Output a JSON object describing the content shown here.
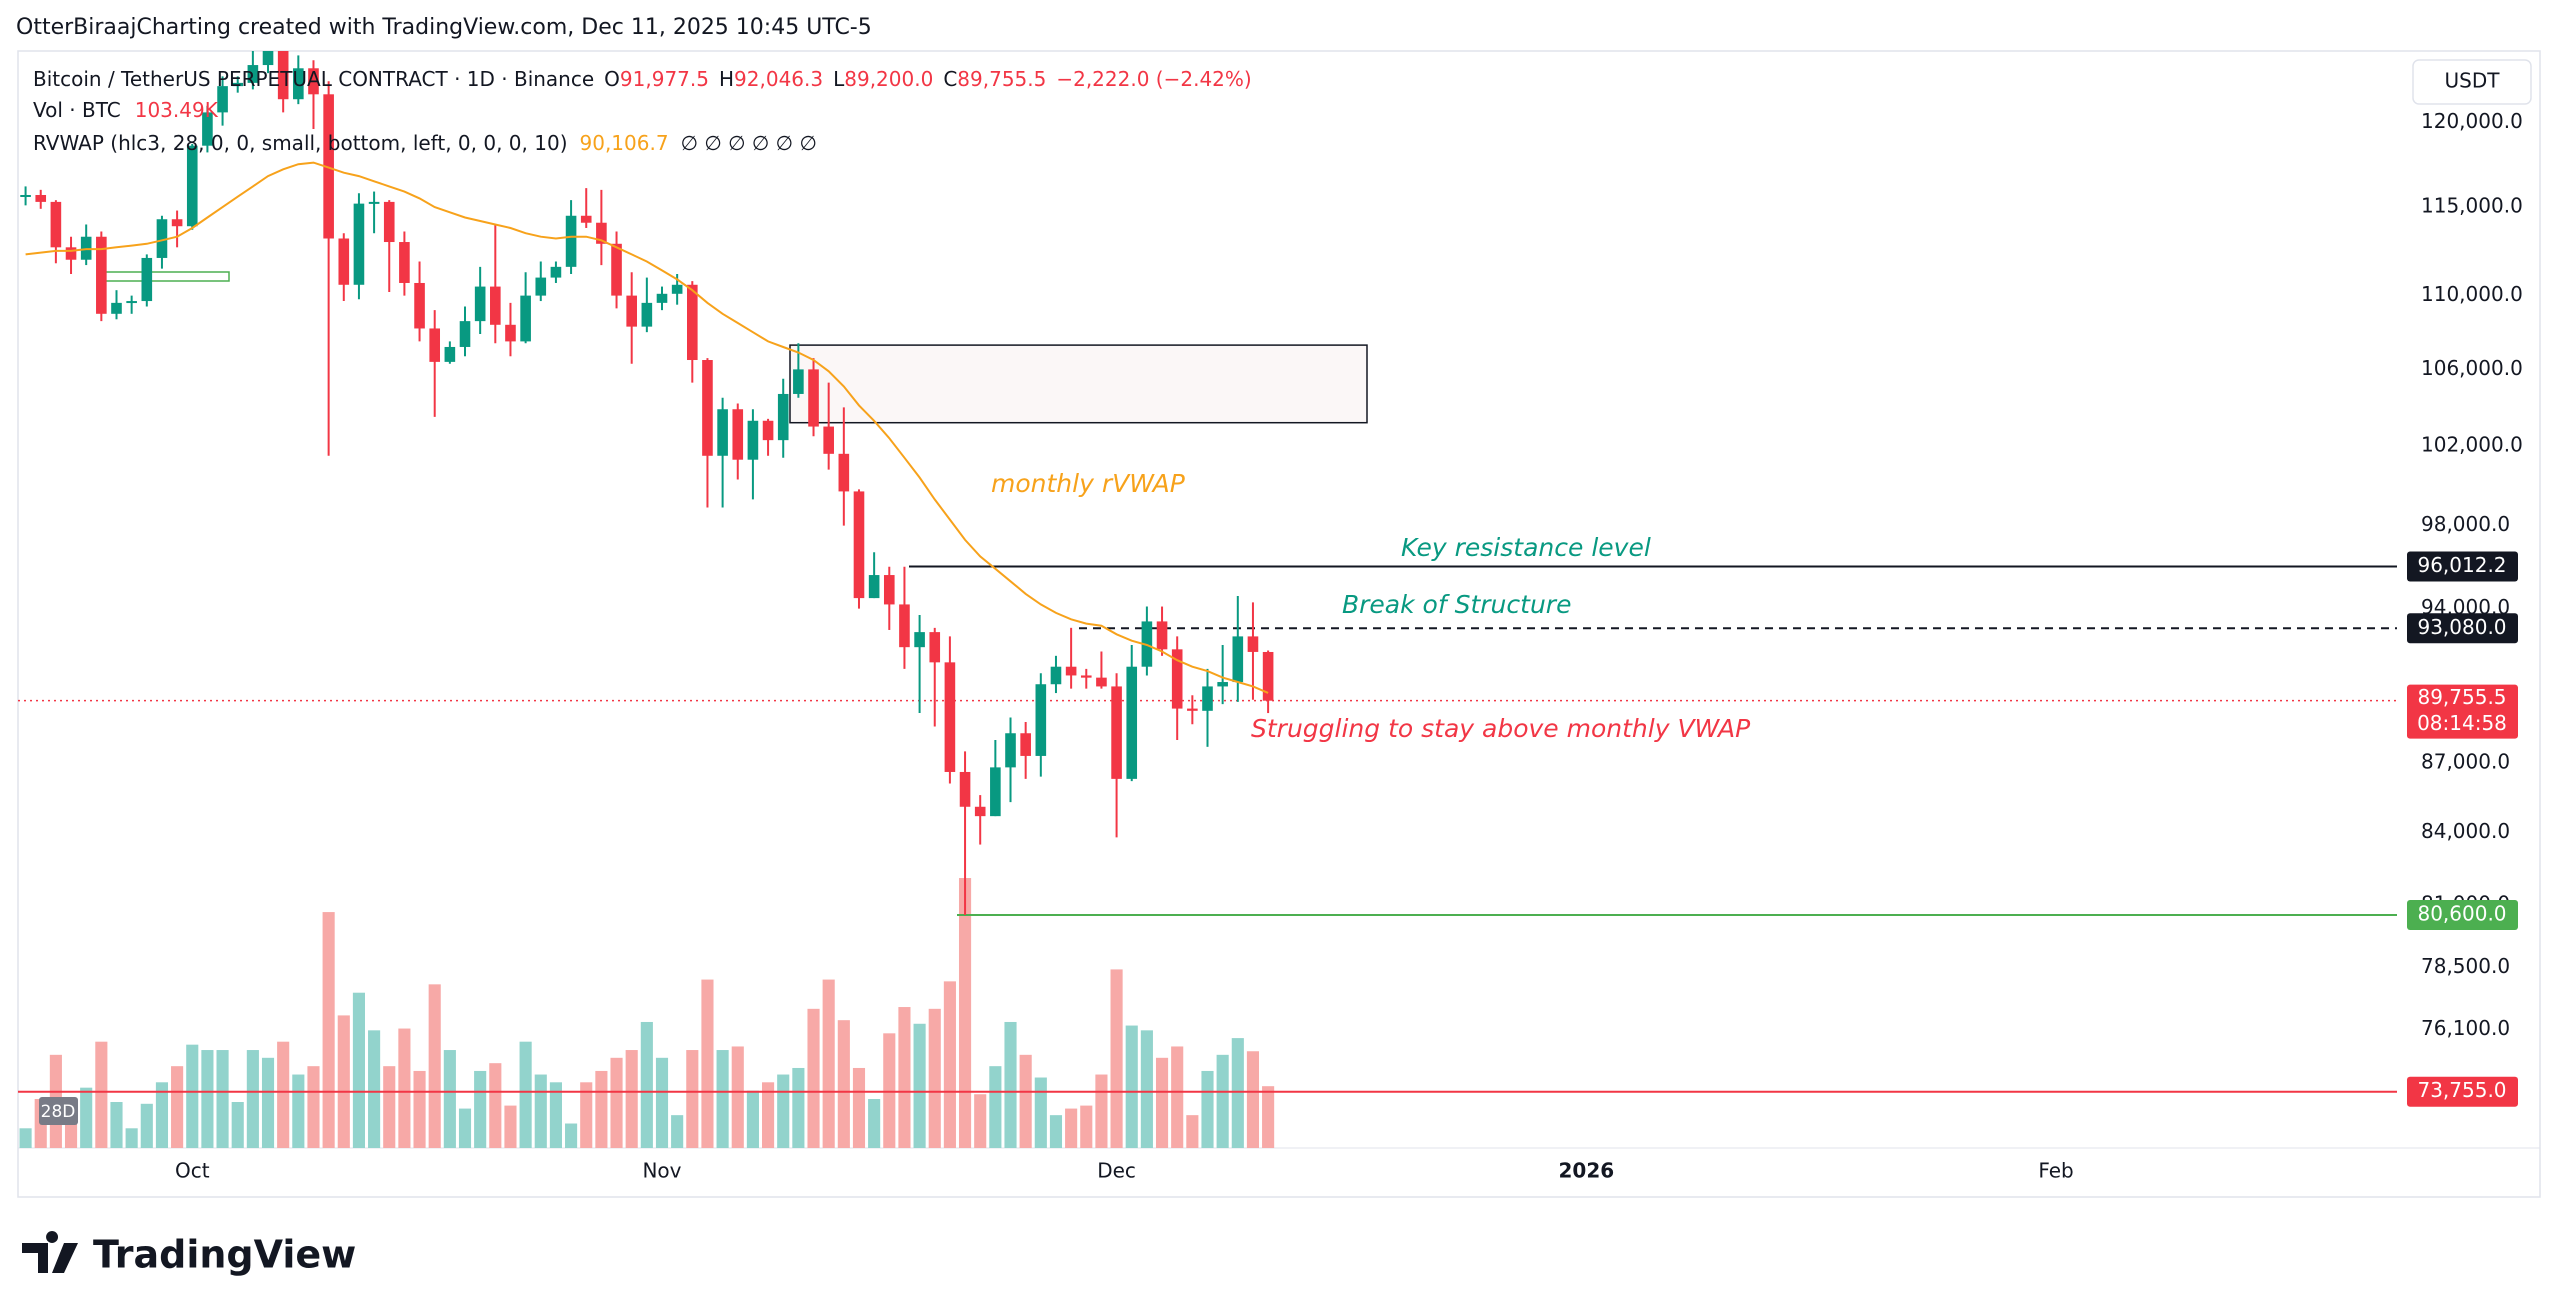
{
  "header": {
    "attribution": "OtterBiraajCharting created with TradingView.com, Dec 11, 2025 10:45 UTC-5"
  },
  "chart_data": {
    "type": "candlestick",
    "symbol": "Bitcoin / TetherUS PERPETUAL CONTRACT · 1D · Binance",
    "ohlc_legend": [
      {
        "key": "O",
        "value": "91,977.5"
      },
      {
        "key": "H",
        "value": "92,046.3"
      },
      {
        "key": "L",
        "value": "89,200.0"
      },
      {
        "key": "C",
        "value": "89,755.5"
      }
    ],
    "change": "−2,222.0 (−2.42%)",
    "volume_legend": {
      "name": "Vol · BTC",
      "value": "103.49K"
    },
    "indicator_legend": {
      "name": "RVWAP (hlc3, 28, 0, 0, small, bottom, left, 0, 0, 0, 10)",
      "value": "90,106.7",
      "extras": "∅ ∅ ∅ ∅ ∅ ∅"
    },
    "currency": "USDT",
    "log_scale": true,
    "grid": false,
    "ylim": [
      71700,
      124500
    ],
    "yticks": [
      {
        "value": 120000,
        "label": "120,000.0"
      },
      {
        "value": 115000,
        "label": "115,000.0"
      },
      {
        "value": 110000,
        "label": "110,000.0"
      },
      {
        "value": 106000,
        "label": "106,000.0"
      },
      {
        "value": 102000,
        "label": "102,000.0"
      },
      {
        "value": 98000,
        "label": "98,000.0"
      },
      {
        "value": 94000,
        "label": "94,000.0"
      },
      {
        "value": 87000,
        "label": "87,000.0"
      },
      {
        "value": 84000,
        "label": "84,000.0"
      },
      {
        "value": 81000,
        "label": "81,000.0"
      },
      {
        "value": 78500,
        "label": "78,500.0"
      },
      {
        "value": 76100,
        "label": "76,100.0"
      }
    ],
    "xlim": [
      -0.5,
      156.5
    ],
    "xticks": [
      {
        "value": 11,
        "label": "Oct"
      },
      {
        "value": 42,
        "label": "Nov"
      },
      {
        "value": 72,
        "label": "Dec"
      },
      {
        "value": 103,
        "label": "2026",
        "bold": true
      },
      {
        "value": 134,
        "label": "Feb"
      }
    ],
    "up_color": "#089981",
    "down_color": "#f23645",
    "open": [
      115600,
      115700,
      115300,
      112700,
      112000,
      113300,
      109000,
      109600,
      109700,
      112100,
      114300,
      113900,
      118600,
      120600,
      122200,
      122400,
      123500,
      124700,
      121400,
      123300,
      121700,
      113200,
      110600,
      115200,
      115300,
      113000,
      110700,
      108200,
      106400,
      107200,
      108600,
      110500,
      108400,
      107500,
      110000,
      111000,
      111600,
      114500,
      114100,
      112900,
      110000,
      108300,
      109600,
      110100,
      110600,
      106500,
      101500,
      103900,
      101300,
      103300,
      102300,
      104700,
      106000,
      103000,
      101600,
      99700,
      94500,
      95600,
      94200,
      92200,
      92900,
      91500,
      86600,
      85100,
      84700,
      86800,
      88300,
      87300,
      90500,
      91300,
      90900,
      90800,
      90400,
      86300,
      91300,
      93400,
      92100,
      89400,
      89300,
      90400,
      90600,
      92700,
      91977.5
    ],
    "high": [
      116200,
      116000,
      115400,
      113300,
      114000,
      113600,
      110300,
      110000,
      112300,
      114500,
      114800,
      118700,
      121000,
      122800,
      122800,
      125200,
      126200,
      125200,
      124100,
      123800,
      122500,
      113500,
      115800,
      115900,
      115400,
      113600,
      111900,
      109200,
      107500,
      109400,
      111600,
      114000,
      109600,
      111300,
      111900,
      111900,
      115400,
      116100,
      116000,
      113600,
      111300,
      111000,
      110500,
      111200,
      110800,
      106600,
      104500,
      104200,
      103900,
      103400,
      105500,
      107400,
      106600,
      105300,
      104000,
      99800,
      96700,
      96000,
      96000,
      93700,
      93100,
      92700,
      87500,
      85600,
      88000,
      89000,
      88800,
      91000,
      91800,
      93100,
      91200,
      92000,
      91000,
      92300,
      94100,
      94100,
      92700,
      90000,
      91200,
      92300,
      94600,
      94300,
      92046.3
    ],
    "low": [
      115100,
      114900,
      111800,
      111200,
      111700,
      108600,
      108700,
      109000,
      109400,
      111500,
      112700,
      113700,
      118200,
      119800,
      121800,
      122000,
      123000,
      120600,
      121100,
      119600,
      101500,
      109700,
      109800,
      113500,
      110200,
      110000,
      107500,
      103500,
      106300,
      106700,
      107900,
      107400,
      106700,
      107400,
      109700,
      110700,
      111200,
      113800,
      111700,
      109300,
      106300,
      108000,
      109200,
      109500,
      105300,
      98900,
      98900,
      100300,
      99300,
      101500,
      101400,
      104500,
      102500,
      100800,
      98000,
      94000,
      94500,
      93000,
      91200,
      89200,
      88600,
      86100,
      80600,
      83500,
      84700,
      85300,
      86300,
      86400,
      90100,
      90300,
      90300,
      90300,
      83800,
      86200,
      90900,
      91800,
      88000,
      88700,
      87700,
      89600,
      89700,
      89800,
      89200
    ],
    "close": [
      115700,
      115300,
      112700,
      112000,
      113300,
      109000,
      109600,
      109700,
      112100,
      114300,
      113900,
      118600,
      120600,
      122200,
      122400,
      123500,
      124700,
      121400,
      123300,
      121700,
      113200,
      110600,
      115200,
      115300,
      113000,
      110700,
      108200,
      106400,
      107200,
      108600,
      110500,
      108400,
      107500,
      110000,
      111000,
      111600,
      114500,
      114100,
      112900,
      110000,
      108300,
      109600,
      110100,
      110600,
      106500,
      101500,
      103900,
      101300,
      103300,
      102300,
      104700,
      106000,
      103000,
      101600,
      99700,
      94500,
      95600,
      94200,
      92200,
      92900,
      91500,
      86600,
      85100,
      84700,
      86800,
      88300,
      87300,
      90500,
      91300,
      90900,
      90800,
      90400,
      86300,
      91300,
      93400,
      92100,
      89400,
      89300,
      90400,
      90600,
      92700,
      91980,
      89755.5
    ],
    "volume": [
      33,
      82,
      156,
      82,
      101,
      178,
      77,
      33,
      74,
      110,
      137,
      173,
      164,
      164,
      77,
      164,
      151,
      178,
      123,
      137,
      395,
      222,
      260,
      197,
      137,
      200,
      129,
      274,
      164,
      66,
      129,
      142,
      71,
      178,
      123,
      110,
      41,
      110,
      129,
      151,
      164,
      211,
      151,
      55,
      164,
      282,
      164,
      170,
      96,
      110,
      123,
      134,
      233,
      282,
      214,
      134,
      82,
      192,
      236,
      208,
      233,
      279,
      452,
      90,
      137,
      211,
      156,
      118,
      55,
      66,
      71,
      123,
      299,
      205,
      197,
      151,
      170,
      55,
      129,
      156,
      184,
      162,
      103.49
    ],
    "volume_lim": [
      0,
      1840
    ],
    "volume_up_color": "#92d3cc",
    "volume_down_color": "#f7a9a7",
    "volume_badge": "28D",
    "rvwap": {
      "color": "#f7a21b",
      "values": [
        112300,
        112400,
        112500,
        112500,
        112600,
        112600,
        112700,
        112800,
        112900,
        113100,
        113300,
        113800,
        114400,
        115000,
        115600,
        116200,
        116800,
        117200,
        117500,
        117600,
        117300,
        117000,
        116800,
        116500,
        116200,
        115900,
        115500,
        115000,
        114700,
        114400,
        114200,
        114000,
        113800,
        113500,
        113300,
        113200,
        113300,
        113300,
        113100,
        112700,
        112300,
        111900,
        111400,
        110900,
        110300,
        109600,
        109000,
        108500,
        108000,
        107500,
        107200,
        106900,
        106500,
        105900,
        105100,
        104100,
        103300,
        102400,
        101400,
        100400,
        99300,
        98300,
        97300,
        96500,
        95900,
        95300,
        94700,
        94200,
        93800,
        93500,
        93300,
        93200,
        92800,
        92500,
        92300,
        92000,
        91600,
        91300,
        91100,
        90800,
        90600,
        90400,
        90106.7
      ]
    },
    "levels": [
      {
        "value": 96012.2,
        "label": "96,012.2",
        "color": "#131722",
        "style": "solid"
      },
      {
        "value": 93080,
        "label": "93,080.0",
        "color": "#131722",
        "style": "dashed"
      },
      {
        "value": 80600,
        "label": "80,600.0",
        "color": "#4caf50",
        "style": "solid"
      },
      {
        "value": 73755,
        "label": "73,755.0",
        "color": "#f23645",
        "style": "solid"
      }
    ],
    "last_price": {
      "value": 89755.5,
      "label": "89,755.5",
      "countdown": "08:14:58",
      "color": "#f23645"
    },
    "zone": {
      "top": 107300,
      "bottom": 103200
    },
    "annotations": [
      {
        "text": "monthly rVWAP",
        "color": "#f7a21b"
      },
      {
        "text": "Key resistance level",
        "color": "#089981"
      },
      {
        "text": "Break of Structure",
        "color": "#089981"
      },
      {
        "text": "Struggling to stay above monthly VWAP",
        "color": "#f23645"
      }
    ]
  },
  "footer": {
    "brand": "TradingView"
  }
}
